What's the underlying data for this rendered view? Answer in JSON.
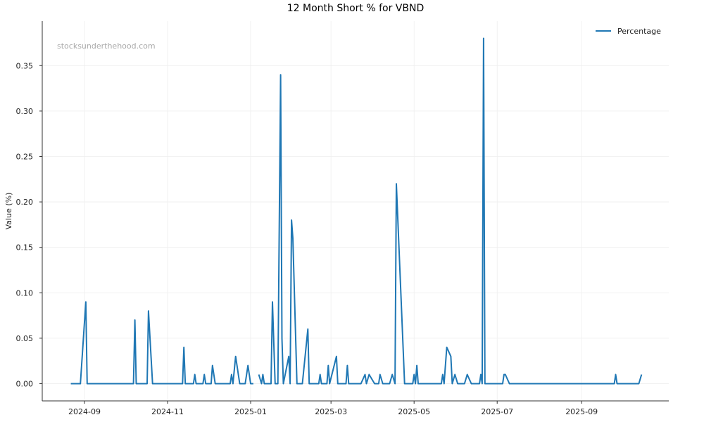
{
  "chart_data": {
    "type": "line",
    "title": "12 Month Short % for VBND",
    "xlabel": "",
    "ylabel": "Value (%)",
    "watermark": "stocksunderthehood.com",
    "xlim": [
      "2024-08-01",
      "2025-11-04"
    ],
    "ylim": [
      -0.019,
      0.399
    ],
    "xticks": [
      "2024-09",
      "2024-11",
      "2025-01",
      "2025-03",
      "2025-05",
      "2025-07",
      "2025-09"
    ],
    "yticks": [
      "0.00",
      "0.05",
      "0.10",
      "0.15",
      "0.20",
      "0.25",
      "0.30",
      "0.35"
    ],
    "grid": true,
    "legend_position": "top-right",
    "color": "#1f77b4",
    "series": [
      {
        "name": "Percentage",
        "points": [
          [
            "2024-08-22",
            0
          ],
          [
            "2024-08-29",
            0
          ],
          [
            "2024-09-02",
            0.09
          ],
          [
            "2024-09-03",
            0
          ],
          [
            "2024-10-07",
            0
          ],
          [
            "2024-10-08",
            0.07
          ],
          [
            "2024-10-09",
            0
          ],
          [
            "2024-10-17",
            0
          ],
          [
            "2024-10-18",
            0.08
          ],
          [
            "2024-10-21",
            0
          ],
          [
            "2024-11-12",
            0
          ],
          [
            "2024-11-13",
            0.04
          ],
          [
            "2024-11-14",
            0
          ],
          [
            "2024-11-20",
            0
          ],
          [
            "2024-11-21",
            0.01
          ],
          [
            "2024-11-22",
            0
          ],
          [
            "2024-11-27",
            0
          ],
          [
            "2024-11-28",
            0.01
          ],
          [
            "2024-11-29",
            0
          ],
          [
            "2024-12-03",
            0
          ],
          [
            "2024-12-04",
            0.02
          ],
          [
            "2024-12-06",
            0
          ],
          [
            "2024-12-17",
            0
          ],
          [
            "2024-12-18",
            0.01
          ],
          [
            "2024-12-19",
            0
          ],
          [
            "2024-12-21",
            0.03
          ],
          [
            "2024-12-24",
            0
          ],
          [
            "2024-12-28",
            0
          ],
          [
            "2024-12-30",
            0.02
          ],
          [
            "2025-01-01",
            0
          ],
          [
            "2025-01-03",
            0
          ],
          [
            "2025-01-05",
            null
          ],
          [
            "2025-01-07",
            0.01
          ],
          [
            "2025-01-09",
            0
          ],
          [
            "2025-01-10",
            0.01
          ],
          [
            "2025-01-11",
            0
          ],
          [
            "2025-01-16",
            0
          ],
          [
            "2025-01-17",
            0.09
          ],
          [
            "2025-01-19",
            0
          ],
          [
            "2025-01-21",
            0
          ],
          [
            "2025-01-23",
            0.34
          ],
          [
            "2025-01-24",
            0.05
          ],
          [
            "2025-01-25",
            0
          ],
          [
            "2025-01-29",
            0.03
          ],
          [
            "2025-01-30",
            0
          ],
          [
            "2025-01-31",
            0.18
          ],
          [
            "2025-02-01",
            0.16
          ],
          [
            "2025-02-04",
            0
          ],
          [
            "2025-02-08",
            0
          ],
          [
            "2025-02-12",
            0.06
          ],
          [
            "2025-02-13",
            0
          ],
          [
            "2025-02-20",
            0
          ],
          [
            "2025-02-21",
            0.01
          ],
          [
            "2025-02-22",
            0
          ],
          [
            "2025-02-26",
            0
          ],
          [
            "2025-02-27",
            0.02
          ],
          [
            "2025-02-28",
            0
          ],
          [
            "2025-03-05",
            0.03
          ],
          [
            "2025-03-06",
            0
          ],
          [
            "2025-03-12",
            0
          ],
          [
            "2025-03-13",
            0.02
          ],
          [
            "2025-03-14",
            0
          ],
          [
            "2025-03-23",
            0
          ],
          [
            "2025-03-26",
            0.01
          ],
          [
            "2025-03-27",
            0
          ],
          [
            "2025-03-29",
            0.01
          ],
          [
            "2025-04-02",
            0
          ],
          [
            "2025-04-05",
            0
          ],
          [
            "2025-04-06",
            0.01
          ],
          [
            "2025-04-08",
            0
          ],
          [
            "2025-04-13",
            0
          ],
          [
            "2025-04-15",
            0.01
          ],
          [
            "2025-04-17",
            0
          ],
          [
            "2025-04-18",
            0.22
          ],
          [
            "2025-04-24",
            0
          ],
          [
            "2025-04-30",
            0
          ],
          [
            "2025-05-01",
            0.01
          ],
          [
            "2025-05-02",
            0
          ],
          [
            "2025-05-03",
            0.02
          ],
          [
            "2025-05-04",
            0
          ],
          [
            "2025-05-21",
            0
          ],
          [
            "2025-05-22",
            0.01
          ],
          [
            "2025-05-23",
            0
          ],
          [
            "2025-05-25",
            0.04
          ],
          [
            "2025-05-28",
            0.03
          ],
          [
            "2025-05-29",
            0
          ],
          [
            "2025-05-31",
            0.01
          ],
          [
            "2025-06-02",
            0
          ],
          [
            "2025-06-07",
            0
          ],
          [
            "2025-06-09",
            0.01
          ],
          [
            "2025-06-12",
            0
          ],
          [
            "2025-06-18",
            0
          ],
          [
            "2025-06-19",
            0.01
          ],
          [
            "2025-06-20",
            0
          ],
          [
            "2025-06-21",
            0.38
          ],
          [
            "2025-06-22",
            0
          ],
          [
            "2025-07-05",
            0
          ],
          [
            "2025-07-06",
            0.01
          ],
          [
            "2025-07-07",
            0.01
          ],
          [
            "2025-07-10",
            0
          ],
          [
            "2025-09-25",
            0
          ],
          [
            "2025-09-26",
            0.01
          ],
          [
            "2025-09-27",
            0
          ],
          [
            "2025-10-13",
            0
          ],
          [
            "2025-10-15",
            0.01
          ]
        ]
      }
    ]
  }
}
